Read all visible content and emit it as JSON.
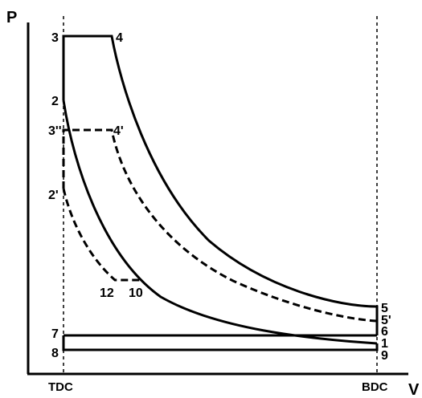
{
  "axes": {
    "y_label": "P",
    "x_label": "V",
    "x_ticks": {
      "left": "TDC",
      "right": "BDC"
    }
  },
  "points": {
    "p1": "1",
    "p2": "2",
    "p2p": "2'",
    "p3": "3",
    "p3pp": "3''",
    "p4": "4",
    "p4p": "4'",
    "p5": "5",
    "p5p": "5'",
    "p6": "6",
    "p7": "7",
    "p8": "8",
    "p9": "9",
    "p10": "10",
    "p12": "12"
  },
  "styles": {
    "stroke_color": "#000000",
    "background": "#ffffff"
  }
}
